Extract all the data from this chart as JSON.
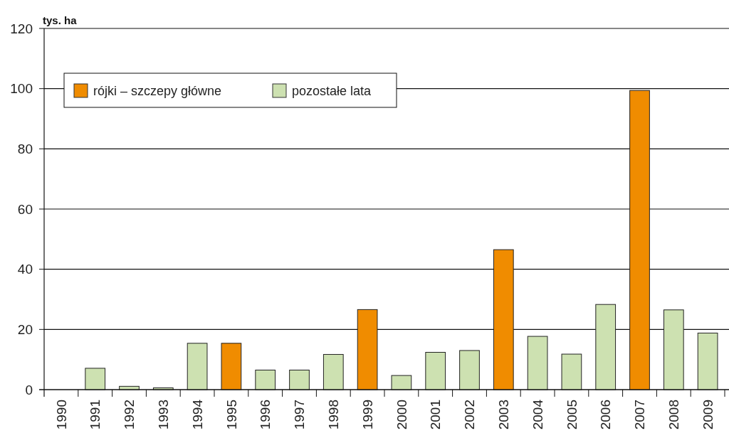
{
  "chart_data": {
    "type": "bar",
    "ylabel": "tys. ha",
    "stacked": true,
    "categories": [
      "1990",
      "1991",
      "1992",
      "1993",
      "1994",
      "1995",
      "1996",
      "1997",
      "1998",
      "1999",
      "2000",
      "2001",
      "2002",
      "2003",
      "2004",
      "2005",
      "2006",
      "2007",
      "2008",
      "2009"
    ],
    "series": [
      {
        "name": "rójki – szczepy główne",
        "color": "#f08c00",
        "values": [
          null,
          null,
          null,
          null,
          null,
          15.4,
          null,
          null,
          null,
          26.6,
          null,
          null,
          null,
          46.5,
          null,
          null,
          null,
          99.4,
          null,
          null
        ]
      },
      {
        "name": "pozostałe lata",
        "color": "#cde1b1",
        "values": [
          null,
          7.1,
          1.1,
          0.6,
          15.4,
          null,
          6.5,
          6.5,
          11.7,
          null,
          4.7,
          12.4,
          13.0,
          null,
          17.7,
          11.8,
          28.3,
          null,
          26.5,
          18.8
        ]
      }
    ],
    "ylim": [
      0,
      120
    ],
    "yticks": [
      0,
      20,
      40,
      60,
      80,
      100,
      120
    ],
    "grid": "y",
    "legend": "top left"
  }
}
